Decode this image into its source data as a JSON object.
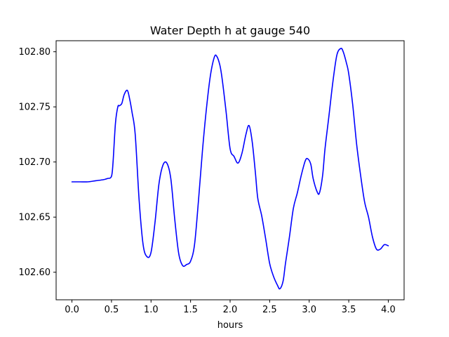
{
  "chart_data": {
    "type": "line",
    "title": "Water Depth h at gauge 540",
    "xlabel": "hours",
    "ylabel": "",
    "xlim": [
      -0.2,
      4.2
    ],
    "ylim": [
      102.575,
      102.81
    ],
    "x_ticks": [
      0.0,
      0.5,
      1.0,
      1.5,
      2.0,
      2.5,
      3.0,
      3.5,
      4.0
    ],
    "x_tick_labels": [
      "0.0",
      "0.5",
      "1.0",
      "1.5",
      "2.0",
      "2.5",
      "3.0",
      "3.5",
      "4.0"
    ],
    "y_ticks": [
      102.6,
      102.65,
      102.7,
      102.75,
      102.8
    ],
    "y_tick_labels": [
      "102.60",
      "102.65",
      "102.70",
      "102.75",
      "102.80"
    ],
    "grid": false,
    "legend": "none",
    "series": [
      {
        "color": "#0000ff",
        "x": [
          0.0,
          0.1,
          0.2,
          0.3,
          0.4,
          0.45,
          0.5,
          0.52,
          0.55,
          0.58,
          0.6,
          0.63,
          0.66,
          0.7,
          0.73,
          0.76,
          0.8,
          0.85,
          0.9,
          0.95,
          1.0,
          1.05,
          1.1,
          1.15,
          1.2,
          1.25,
          1.3,
          1.35,
          1.4,
          1.45,
          1.5,
          1.55,
          1.6,
          1.65,
          1.7,
          1.75,
          1.8,
          1.83,
          1.87,
          1.9,
          1.95,
          2.0,
          2.05,
          2.1,
          2.15,
          2.2,
          2.24,
          2.28,
          2.32,
          2.35,
          2.4,
          2.45,
          2.5,
          2.55,
          2.6,
          2.63,
          2.67,
          2.7,
          2.75,
          2.8,
          2.85,
          2.9,
          2.95,
          2.98,
          3.02,
          3.05,
          3.1,
          3.13,
          3.17,
          3.2,
          3.25,
          3.3,
          3.35,
          3.4,
          3.43,
          3.47,
          3.5,
          3.55,
          3.6,
          3.65,
          3.7,
          3.75,
          3.8,
          3.85,
          3.9,
          3.95,
          4.0
        ],
        "y": [
          102.682,
          102.682,
          102.682,
          102.683,
          102.684,
          102.685,
          102.687,
          102.7,
          102.735,
          102.75,
          102.751,
          102.753,
          102.761,
          102.765,
          102.757,
          102.745,
          102.725,
          102.665,
          102.625,
          102.614,
          102.618,
          102.645,
          102.68,
          102.697,
          102.699,
          102.685,
          102.648,
          102.617,
          102.606,
          102.607,
          102.61,
          102.625,
          102.665,
          102.71,
          102.748,
          102.778,
          102.795,
          102.796,
          102.788,
          102.775,
          102.745,
          102.712,
          102.705,
          102.699,
          102.708,
          102.725,
          102.733,
          102.718,
          102.69,
          102.667,
          102.651,
          102.63,
          102.608,
          102.596,
          102.588,
          102.585,
          102.592,
          102.608,
          102.632,
          102.658,
          102.672,
          102.688,
          102.701,
          102.703,
          102.698,
          102.685,
          102.673,
          102.672,
          102.688,
          102.712,
          102.742,
          102.773,
          102.797,
          102.803,
          102.8,
          102.79,
          102.78,
          102.752,
          102.716,
          102.688,
          102.664,
          102.65,
          102.632,
          102.621,
          102.621,
          102.625,
          102.624
        ]
      }
    ]
  }
}
